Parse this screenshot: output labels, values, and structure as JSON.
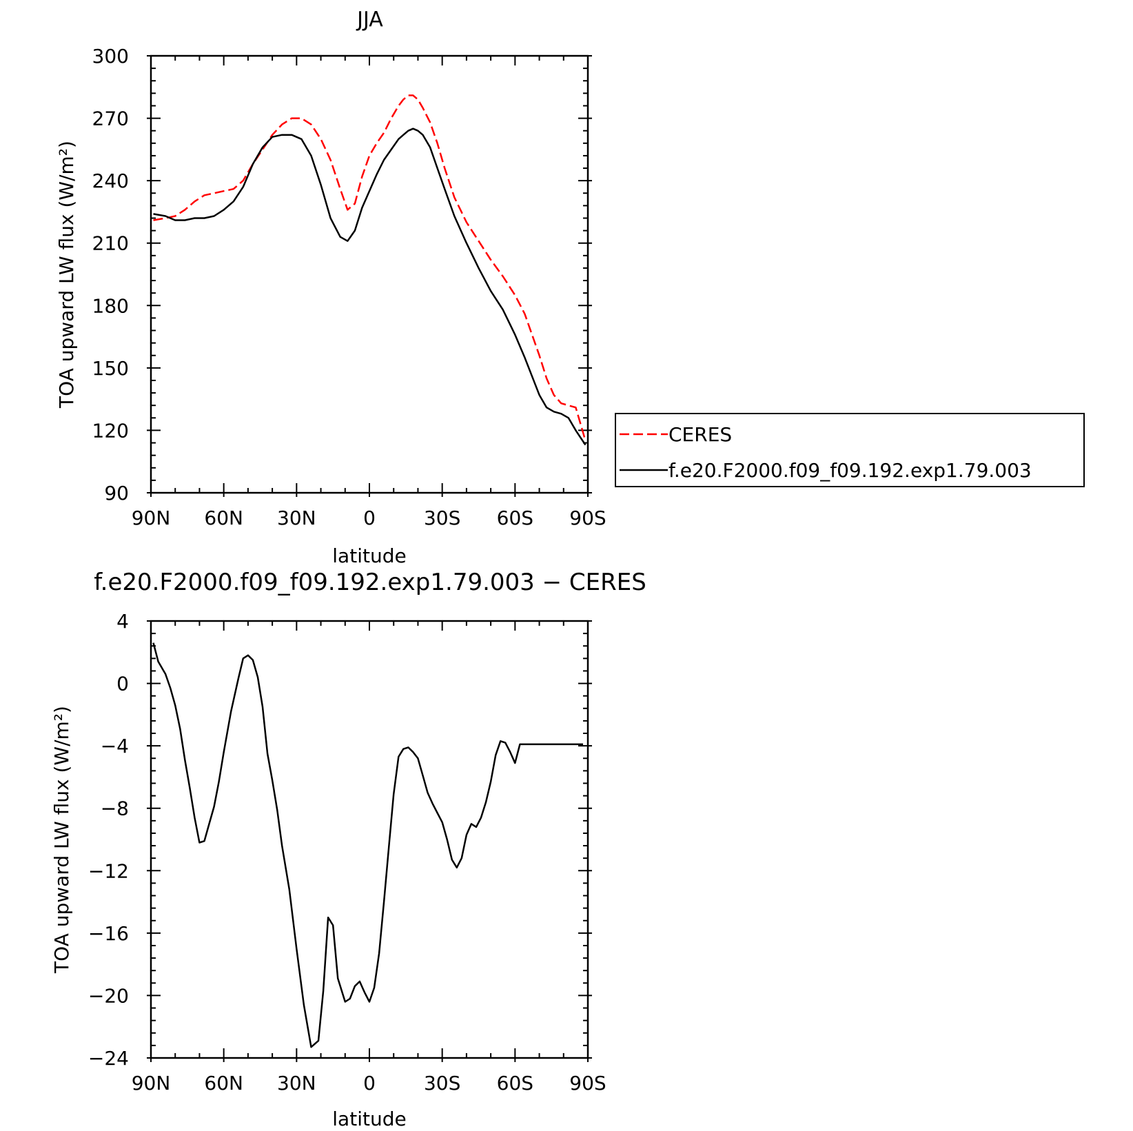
{
  "chart_data": [
    {
      "type": "line",
      "title": "JJA",
      "xlabel": "latitude",
      "ylabel": "TOA upward LW flux (W/m²)",
      "xlim": [
        90,
        -90
      ],
      "ylim": [
        90,
        300
      ],
      "xticks": [
        90,
        60,
        30,
        0,
        -30,
        -60,
        -90
      ],
      "xtick_labels": [
        "90N",
        "60N",
        "30N",
        "0",
        "30S",
        "60S",
        "90S"
      ],
      "yticks": [
        90,
        120,
        150,
        180,
        210,
        240,
        270,
        300
      ],
      "ytick_labels": [
        "90",
        "120",
        "150",
        "180",
        "210",
        "240",
        "270",
        "300"
      ],
      "legend_position": "right",
      "series": [
        {
          "name": "CERES",
          "color": "#ff0000",
          "dashed": true,
          "x": [
            89,
            84,
            80,
            76,
            72,
            68,
            64,
            60,
            56,
            52,
            48,
            44,
            40,
            36,
            32,
            28,
            24,
            20,
            16,
            12,
            9,
            6,
            3,
            0,
            -3,
            -6,
            -9,
            -12,
            -14,
            -16,
            -18,
            -20,
            -22,
            -25,
            -28,
            -31,
            -35,
            -40,
            -45,
            -50,
            -55,
            -60,
            -64,
            -67,
            -70,
            -73,
            -76,
            -79,
            -82,
            -85,
            -89
          ],
          "values": [
            221,
            222,
            223,
            226,
            230,
            233,
            234,
            235,
            236,
            240,
            248,
            255,
            262,
            267,
            270,
            270,
            267,
            260,
            250,
            236,
            226,
            229,
            242,
            252,
            258,
            263,
            270,
            276,
            279,
            281,
            281,
            279,
            275,
            268,
            258,
            246,
            232,
            220,
            211,
            202,
            194,
            185,
            176,
            166,
            156,
            145,
            137,
            133,
            132,
            131,
            115
          ]
        },
        {
          "name": "f.e20.F2000.f09_f09.192.exp1.79.003",
          "color": "#000000",
          "dashed": false,
          "x": [
            89,
            84,
            80,
            76,
            72,
            68,
            64,
            60,
            56,
            52,
            48,
            44,
            40,
            36,
            32,
            28,
            24,
            20,
            16,
            12,
            9,
            6,
            3,
            0,
            -3,
            -6,
            -9,
            -12,
            -14,
            -16,
            -18,
            -20,
            -22,
            -25,
            -28,
            -31,
            -35,
            -40,
            -45,
            -50,
            -55,
            -60,
            -64,
            -67,
            -70,
            -73,
            -76,
            -79,
            -82,
            -85,
            -89
          ],
          "values": [
            224,
            223,
            221,
            221,
            222,
            222,
            223,
            226,
            230,
            237,
            248,
            256,
            261,
            262,
            262,
            260,
            252,
            238,
            222,
            213,
            211,
            216,
            227,
            235,
            243,
            250,
            255,
            260,
            262,
            264,
            265,
            264,
            262,
            256,
            246,
            236,
            223,
            210,
            198,
            187,
            178,
            166,
            155,
            146,
            137,
            131,
            129,
            128,
            126,
            120,
            113
          ]
        }
      ]
    },
    {
      "type": "line",
      "title": "f.e20.F2000.f09_f09.192.exp1.79.003 − CERES",
      "xlabel": "latitude",
      "ylabel": "TOA upward LW flux (W/m²)",
      "xlim": [
        90,
        -90
      ],
      "ylim": [
        -24,
        4
      ],
      "xticks": [
        90,
        60,
        30,
        0,
        -30,
        -60,
        -90
      ],
      "xtick_labels": [
        "90N",
        "60N",
        "30N",
        "0",
        "30S",
        "60S",
        "90S"
      ],
      "yticks": [
        4,
        0,
        -4,
        -8,
        -12,
        -16,
        -20,
        -24
      ],
      "ytick_labels": [
        "4",
        "0",
        "−4",
        "−8",
        "−12",
        "−16",
        "−20",
        "−24"
      ],
      "series": [
        {
          "color": "#000000",
          "x": [
            89,
            87,
            84,
            82,
            80,
            78,
            76,
            74,
            72,
            70,
            68,
            66,
            64,
            62,
            60,
            57,
            54,
            52,
            50,
            48,
            46,
            44,
            42,
            40,
            38,
            36,
            33,
            30,
            27,
            24,
            21,
            19,
            17,
            15,
            13,
            10,
            8,
            6,
            4,
            2,
            0,
            -2,
            -4,
            -6,
            -8,
            -10,
            -12,
            -14,
            -16,
            -18,
            -20,
            -22,
            -24,
            -26,
            -28,
            -30,
            -32,
            -34,
            -36,
            -38,
            -40,
            -42,
            -44,
            -46,
            -48,
            -50,
            -52,
            -54,
            -56,
            -58,
            -60,
            -62,
            -64,
            -66,
            -68,
            -70,
            -72,
            -74,
            -76,
            -78,
            -80,
            -82,
            -84,
            -86,
            -88
          ],
          "values": [
            2.6,
            1.4,
            0.6,
            -0.3,
            -1.4,
            -2.9,
            -4.9,
            -6.7,
            -8.6,
            -10.2,
            -10.1,
            -9.0,
            -7.9,
            -6.3,
            -4.4,
            -1.8,
            0.3,
            1.6,
            1.8,
            1.5,
            0.4,
            -1.5,
            -4.5,
            -6.2,
            -8.1,
            -10.4,
            -13.2,
            -17.0,
            -20.6,
            -23.3,
            -22.9,
            -19.7,
            -15.0,
            -15.5,
            -18.9,
            -20.4,
            -20.2,
            -19.4,
            -19.1,
            -19.8,
            -20.4,
            -19.5,
            -17.3,
            -14.0,
            -10.5,
            -7.1,
            -4.7,
            -4.2,
            -4.1,
            -4.4,
            -4.8,
            -5.9,
            -7.0,
            -7.7,
            -8.3,
            -8.9,
            -10.0,
            -11.3,
            -11.8,
            -11.2,
            -9.7,
            -9.0,
            -9.2,
            -8.6,
            -7.6,
            -6.3,
            -4.6,
            -3.7,
            -3.8,
            -4.4,
            -5.1,
            -3.9,
            -3.9,
            -3.9,
            -3.9,
            -3.9,
            -3.9,
            -3.9,
            -3.9,
            -3.9,
            -3.9,
            -3.9,
            -3.9,
            -3.9,
            -3.9
          ]
        }
      ]
    }
  ]
}
